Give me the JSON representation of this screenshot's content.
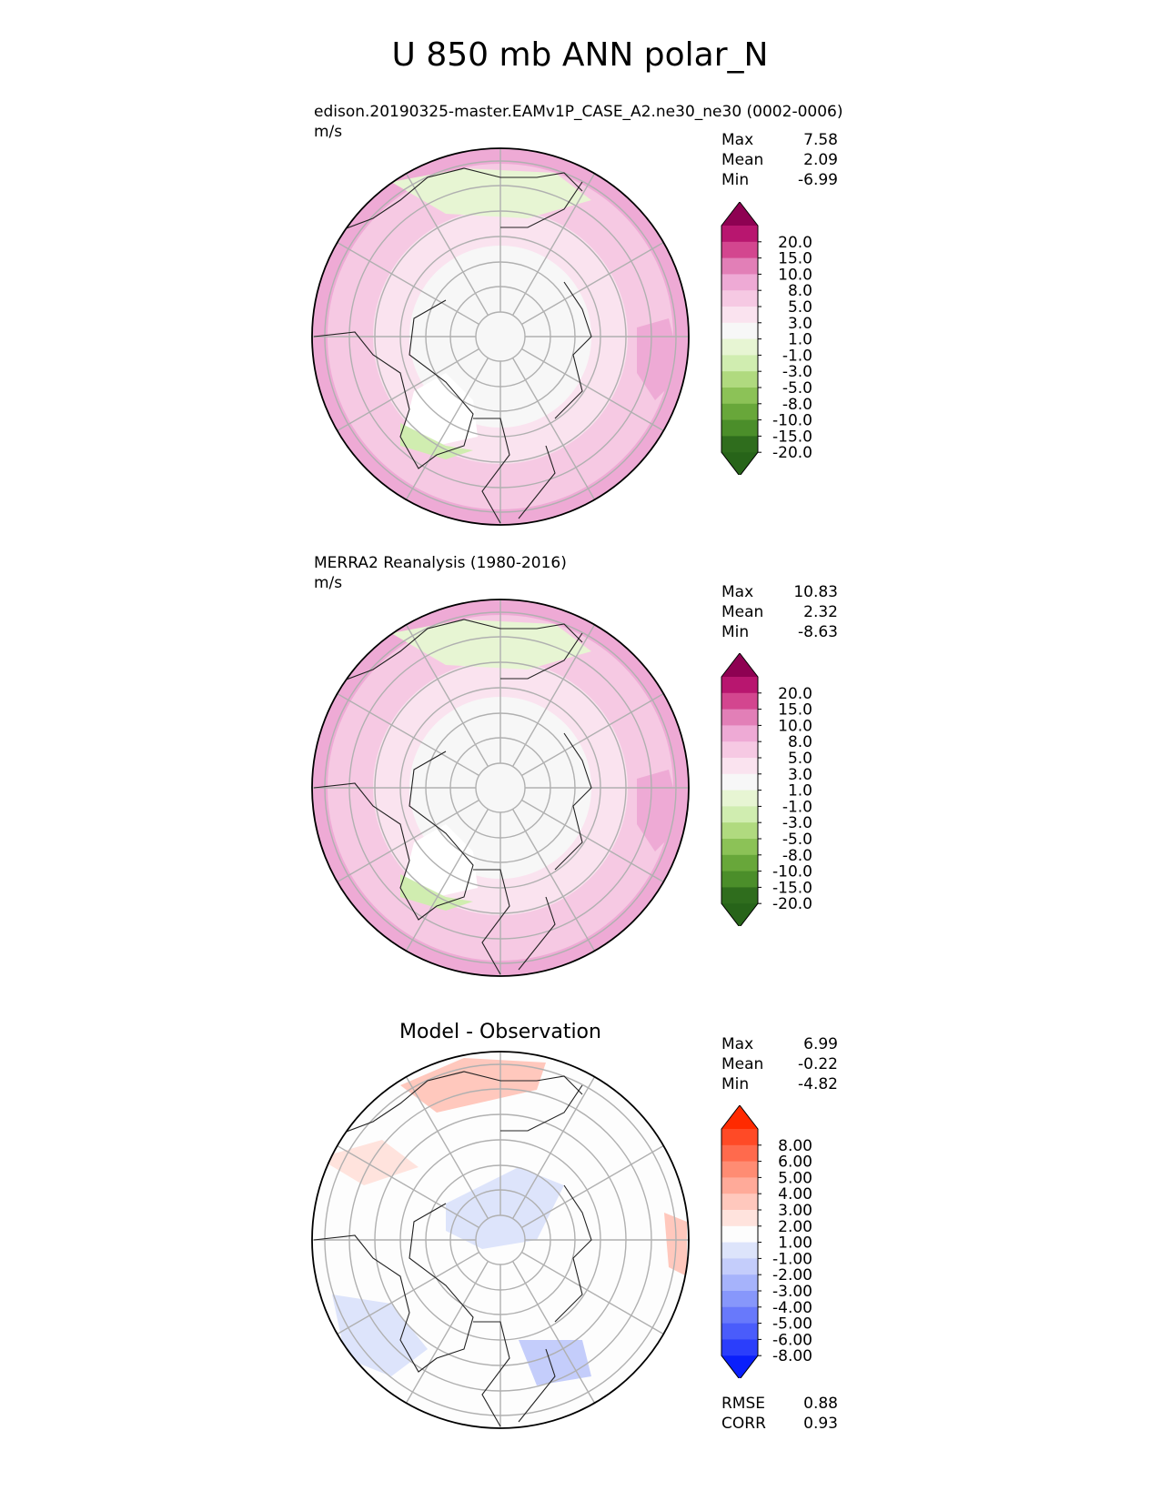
{
  "figure": {
    "title": "U 850 mb ANN polar_N"
  },
  "chart_data": [
    {
      "type": "heatmap",
      "projection": "north-polar-stereographic",
      "title": "edison.20190325-master.EAMv1P_CASE_A2.ne30_ne30 (0002-0006)",
      "units": "m/s",
      "stats": {
        "max_label": "Max",
        "max": "7.58",
        "mean_label": "Mean",
        "mean": "2.09",
        "min_label": "Min",
        "min": "-6.99"
      },
      "colorbar": {
        "labels": [
          "20.0",
          "15.0",
          "10.0",
          "8.0",
          "5.0",
          "3.0",
          "1.0",
          "-1.0",
          "-3.0",
          "-5.0",
          "-8.0",
          "-10.0",
          "-15.0",
          "-20.0"
        ],
        "colors": [
          "#8e0152",
          "#b8166f",
          "#d3468f",
          "#e27fb7",
          "#eeaad5",
          "#f6c9e3",
          "#fae3ef",
          "#f7f7f7",
          "#e7f5d3",
          "#d0edb0",
          "#b0da7f",
          "#8cc257",
          "#68a73a",
          "#4b8e2a",
          "#2f6d1d",
          "#276419"
        ]
      },
      "palette": {
        "land": "#222222",
        "grid": "#b0b0b0"
      }
    },
    {
      "type": "heatmap",
      "projection": "north-polar-stereographic",
      "title": "MERRA2 Reanalysis (1980-2016)",
      "units": "m/s",
      "stats": {
        "max_label": "Max",
        "max": "10.83",
        "mean_label": "Mean",
        "mean": "2.32",
        "min_label": "Min",
        "min": "-8.63"
      },
      "colorbar": {
        "labels": [
          "20.0",
          "15.0",
          "10.0",
          "8.0",
          "5.0",
          "3.0",
          "1.0",
          "-1.0",
          "-3.0",
          "-5.0",
          "-8.0",
          "-10.0",
          "-15.0",
          "-20.0"
        ],
        "colors": [
          "#8e0152",
          "#b8166f",
          "#d3468f",
          "#e27fb7",
          "#eeaad5",
          "#f6c9e3",
          "#fae3ef",
          "#f7f7f7",
          "#e7f5d3",
          "#d0edb0",
          "#b0da7f",
          "#8cc257",
          "#68a73a",
          "#4b8e2a",
          "#2f6d1d",
          "#276419"
        ]
      }
    },
    {
      "type": "heatmap",
      "projection": "north-polar-stereographic",
      "title": "Model - Observation",
      "units": "",
      "stats": {
        "max_label": "Max",
        "max": "6.99",
        "mean_label": "Mean",
        "mean": "-0.22",
        "min_label": "Min",
        "min": "-4.82"
      },
      "colorbar": {
        "labels": [
          "8.00",
          "6.00",
          "5.00",
          "4.00",
          "3.00",
          "2.00",
          "1.00",
          "-1.00",
          "-2.00",
          "-3.00",
          "-4.00",
          "-5.00",
          "-6.00",
          "-8.00"
        ],
        "colors": [
          "#ff2a00",
          "#ff4a26",
          "#ff6a4d",
          "#ff8c73",
          "#ffaa99",
          "#ffc8bd",
          "#ffe3dd",
          "#fdfdfd",
          "#dde4fb",
          "#c4cdfb",
          "#a6b3fb",
          "#8797fb",
          "#6879fb",
          "#4a5cfb",
          "#2b3efb",
          "#0a1ffb"
        ]
      },
      "metrics": {
        "rmse_label": "RMSE",
        "rmse": "0.88",
        "corr_label": "CORR",
        "corr": "0.93"
      }
    }
  ]
}
